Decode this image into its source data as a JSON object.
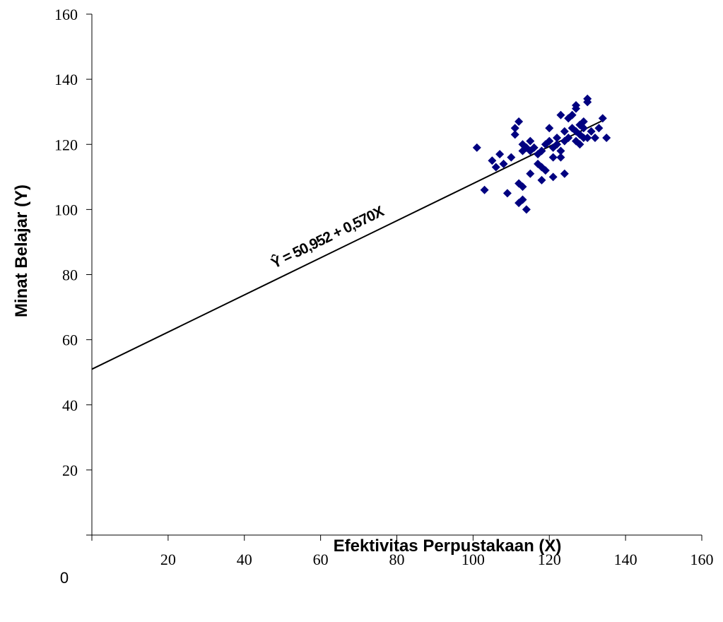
{
  "chart_data": {
    "type": "scatter",
    "xlabel": "Efektivitas Perpustakaan (X)",
    "ylabel": "Minat Belajar (Y)",
    "xlim": [
      0,
      160
    ],
    "ylim": [
      0,
      160
    ],
    "x_ticks": [
      20,
      40,
      60,
      80,
      100,
      120,
      140,
      160
    ],
    "y_ticks": [
      20,
      40,
      60,
      80,
      100,
      120,
      140,
      160
    ],
    "origin_label": "0",
    "grid": false,
    "legend": "none",
    "marker": "diamond",
    "marker_color": "#000080",
    "regression": {
      "equation": "Ŷ = 50,952 + 0,570X",
      "intercept": 50.952,
      "slope": 0.57,
      "x_range": [
        0,
        134
      ],
      "color": "#000000"
    },
    "points": [
      [
        101,
        119
      ],
      [
        103,
        106
      ],
      [
        105,
        115
      ],
      [
        106,
        113
      ],
      [
        107,
        117
      ],
      [
        108,
        114
      ],
      [
        109,
        105
      ],
      [
        110,
        116
      ],
      [
        111,
        123
      ],
      [
        111,
        125
      ],
      [
        112,
        127
      ],
      [
        112,
        108
      ],
      [
        112,
        102
      ],
      [
        113,
        107
      ],
      [
        113,
        103
      ],
      [
        113,
        118
      ],
      [
        113,
        120
      ],
      [
        114,
        100
      ],
      [
        114,
        119
      ],
      [
        115,
        111
      ],
      [
        115,
        121
      ],
      [
        115,
        118
      ],
      [
        116,
        119
      ],
      [
        117,
        117
      ],
      [
        117,
        114
      ],
      [
        118,
        113
      ],
      [
        118,
        109
      ],
      [
        118,
        118
      ],
      [
        119,
        120
      ],
      [
        119,
        112
      ],
      [
        120,
        125
      ],
      [
        120,
        121
      ],
      [
        121,
        110
      ],
      [
        121,
        119
      ],
      [
        121,
        116
      ],
      [
        122,
        122
      ],
      [
        122,
        120
      ],
      [
        123,
        129
      ],
      [
        123,
        116
      ],
      [
        123,
        118
      ],
      [
        124,
        111
      ],
      [
        124,
        121
      ],
      [
        124,
        124
      ],
      [
        125,
        128
      ],
      [
        125,
        122
      ],
      [
        126,
        129
      ],
      [
        126,
        125
      ],
      [
        127,
        131
      ],
      [
        127,
        132
      ],
      [
        127,
        121
      ],
      [
        127,
        124
      ],
      [
        128,
        126
      ],
      [
        128,
        120
      ],
      [
        128,
        123
      ],
      [
        129,
        127
      ],
      [
        129,
        125
      ],
      [
        129,
        122
      ],
      [
        130,
        134
      ],
      [
        130,
        133
      ],
      [
        130,
        122
      ],
      [
        131,
        124
      ],
      [
        132,
        122
      ],
      [
        133,
        125
      ],
      [
        134,
        128
      ],
      [
        135,
        122
      ]
    ]
  }
}
